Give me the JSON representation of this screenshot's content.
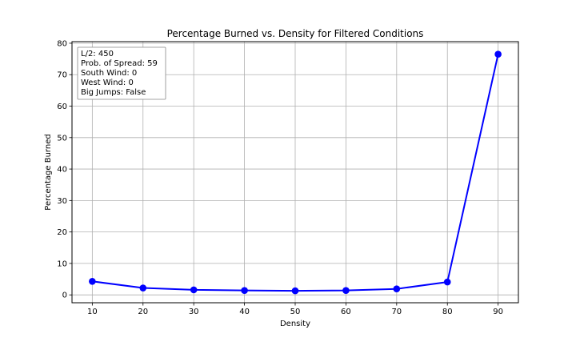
{
  "chart_data": {
    "type": "line",
    "title": "Percentage Burned vs. Density for Filtered Conditions",
    "xlabel": "Density",
    "ylabel": "Percentage Burned",
    "x": [
      10,
      20,
      30,
      40,
      50,
      60,
      70,
      80,
      90
    ],
    "series": [
      {
        "values": [
          4.3,
          2.2,
          1.6,
          1.4,
          1.3,
          1.4,
          1.9,
          4.1,
          76.5
        ],
        "color": "#0000ff"
      }
    ],
    "xticks": [
      10,
      20,
      30,
      40,
      50,
      60,
      70,
      80,
      90
    ],
    "yticks": [
      0,
      10,
      20,
      30,
      40,
      50,
      60,
      70,
      80
    ],
    "xlim": [
      6.0,
      94.0
    ],
    "ylim": [
      -2.5,
      80.5
    ],
    "grid": true,
    "annotation": {
      "position": "top-left",
      "lines": [
        "L/2: 450",
        "Prob. of Spread: 59",
        "South Wind: 0",
        "West Wind: 0",
        "Big Jumps: False"
      ]
    }
  }
}
